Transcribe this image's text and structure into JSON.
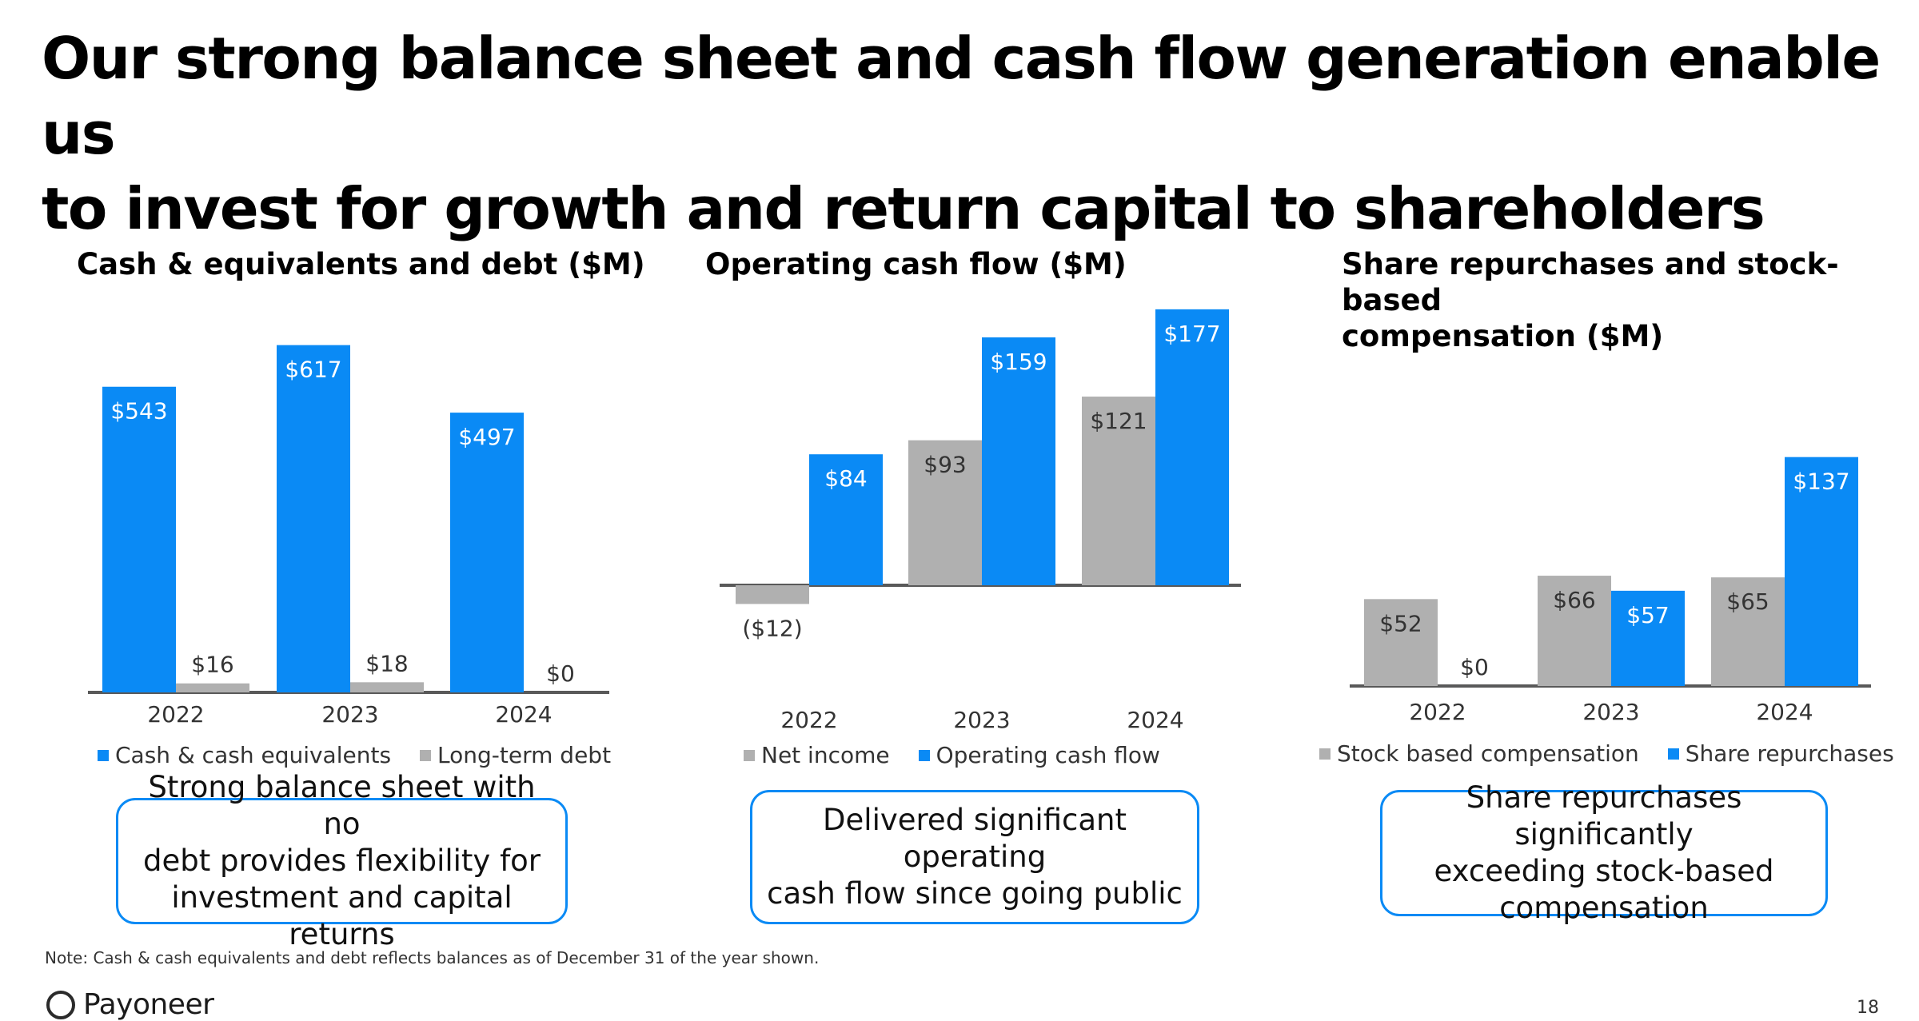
{
  "slide": {
    "title_line1": "Our strong balance sheet and cash flow generation enable us",
    "title_line2": "to invest for growth and return capital to shareholders",
    "note": "Note: Cash & cash equivalents and debt reflects balances as of December 31 of the year shown.",
    "logo_text": "Payoneer",
    "page_number": "18"
  },
  "colors": {
    "blue": "#0a8af5",
    "gray": "#b0b0b0",
    "axis": "#595959"
  },
  "chart_data": [
    {
      "type": "bar",
      "title": "Cash & equivalents and debt ($M)",
      "categories": [
        "2022",
        "2023",
        "2024"
      ],
      "series": [
        {
          "name": "Cash & cash equivalents",
          "color": "#0a8af5",
          "values": [
            543,
            617,
            497
          ],
          "labels": [
            "$543",
            "$617",
            "$497"
          ]
        },
        {
          "name": "Long-term debt",
          "color": "#b0b0b0",
          "values": [
            16,
            18,
            0
          ],
          "labels": [
            "$16",
            "$18",
            "$0"
          ]
        }
      ],
      "legend": "bottom",
      "callout_lines": [
        "Strong balance sheet with no",
        "debt provides flexibility for",
        "investment and capital returns"
      ]
    },
    {
      "type": "bar",
      "title": "Operating cash flow ($M)",
      "categories": [
        "2022",
        "2023",
        "2024"
      ],
      "series": [
        {
          "name": "Net income",
          "color": "#b0b0b0",
          "values": [
            -12,
            93,
            121
          ],
          "labels": [
            "($12)",
            "$93",
            "$121"
          ]
        },
        {
          "name": "Operating cash flow",
          "color": "#0a8af5",
          "values": [
            84,
            159,
            177
          ],
          "labels": [
            "$84",
            "$159",
            "$177"
          ]
        }
      ],
      "legend": "bottom",
      "callout_lines": [
        "Delivered significant operating",
        "cash flow since going public"
      ]
    },
    {
      "type": "bar",
      "title_line1": "Share repurchases and stock-based",
      "title_line2": "compensation ($M)",
      "categories": [
        "2022",
        "2023",
        "2024"
      ],
      "series": [
        {
          "name": "Stock based compensation",
          "color": "#b0b0b0",
          "values": [
            52,
            66,
            65
          ],
          "labels": [
            "$52",
            "$66",
            "$65"
          ]
        },
        {
          "name": "Share repurchases",
          "color": "#0a8af5",
          "values": [
            0,
            57,
            137
          ],
          "labels": [
            "$0",
            "$57",
            "$137"
          ]
        }
      ],
      "legend": "bottom",
      "callout_lines": [
        "Share repurchases significantly",
        "exceeding stock-based",
        "compensation"
      ]
    }
  ]
}
